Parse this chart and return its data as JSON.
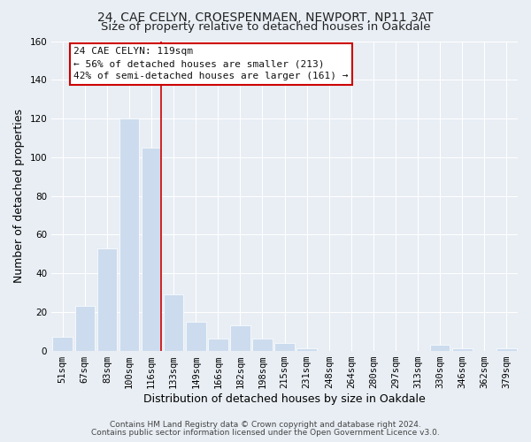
{
  "title1": "24, CAE CELYN, CROESPENMAEN, NEWPORT, NP11 3AT",
  "title2": "Size of property relative to detached houses in Oakdale",
  "xlabel": "Distribution of detached houses by size in Oakdale",
  "ylabel": "Number of detached properties",
  "bar_labels": [
    "51sqm",
    "67sqm",
    "83sqm",
    "100sqm",
    "116sqm",
    "133sqm",
    "149sqm",
    "166sqm",
    "182sqm",
    "198sqm",
    "215sqm",
    "231sqm",
    "248sqm",
    "264sqm",
    "280sqm",
    "297sqm",
    "313sqm",
    "330sqm",
    "346sqm",
    "362sqm",
    "379sqm"
  ],
  "bar_values": [
    7,
    23,
    53,
    120,
    105,
    29,
    15,
    6,
    13,
    6,
    4,
    1,
    0,
    0,
    0,
    0,
    0,
    3,
    1,
    0,
    1
  ],
  "bar_color": "#ccdcee",
  "bar_edge_color": "#ffffff",
  "vline_color": "#cc0000",
  "annotation_title": "24 CAE CELYN: 119sqm",
  "annotation_line1": "← 56% of detached houses are smaller (213)",
  "annotation_line2": "42% of semi-detached houses are larger (161) →",
  "annotation_box_color": "#ffffff",
  "annotation_box_edge": "#cc0000",
  "ylim": [
    0,
    160
  ],
  "yticks": [
    0,
    20,
    40,
    60,
    80,
    100,
    120,
    140,
    160
  ],
  "footnote1": "Contains HM Land Registry data © Crown copyright and database right 2024.",
  "footnote2": "Contains public sector information licensed under the Open Government Licence v3.0.",
  "background_color": "#e8eef4",
  "grid_color": "#ffffff",
  "title_fontsize": 10,
  "subtitle_fontsize": 9.5,
  "axis_label_fontsize": 9,
  "tick_fontsize": 7.5,
  "annotation_fontsize": 8,
  "footnote_fontsize": 6.5
}
